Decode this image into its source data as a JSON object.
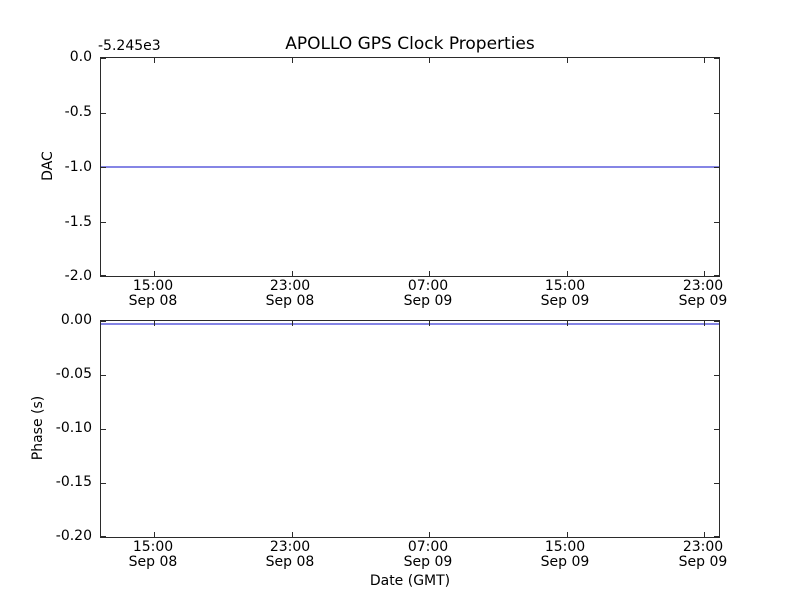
{
  "figure": {
    "title": "APOLLO GPS Clock Properties",
    "xlabel": "Date (GMT)"
  },
  "style": {
    "line_color": "#8585e5",
    "spine_color": "#2b2b2b",
    "text_color": "#000000",
    "background": "#ffffff"
  },
  "chart_data": [
    {
      "type": "line",
      "title": "APOLLO GPS Clock Properties",
      "ylabel": "DAC",
      "y_offset_text": "-5.245e3",
      "ylim": [
        -2.0,
        0.0
      ],
      "yticks": [
        "0.0",
        "-0.5",
        "-1.0",
        "-1.5",
        "-2.0"
      ],
      "x_tick_labels": [
        {
          "time": "15:00",
          "date": "Sep 08"
        },
        {
          "time": "23:00",
          "date": "Sep 08"
        },
        {
          "time": "07:00",
          "date": "Sep 09"
        },
        {
          "time": "15:00",
          "date": "Sep 09"
        },
        {
          "time": "23:00",
          "date": "Sep 09"
        }
      ],
      "grid": false,
      "legend": "none",
      "series": [
        {
          "name": "DAC",
          "shape": "constant-horizontal-line",
          "y_constant": -1.0
        }
      ]
    },
    {
      "type": "line",
      "ylabel": "Phase (s)",
      "xlabel": "Date (GMT)",
      "ylim": [
        -0.2,
        0.0
      ],
      "yticks": [
        "0.00",
        "-0.05",
        "-0.10",
        "-0.15",
        "-0.20"
      ],
      "x_tick_labels": [
        {
          "time": "15:00",
          "date": "Sep 08"
        },
        {
          "time": "23:00",
          "date": "Sep 08"
        },
        {
          "time": "07:00",
          "date": "Sep 09"
        },
        {
          "time": "15:00",
          "date": "Sep 09"
        },
        {
          "time": "23:00",
          "date": "Sep 09"
        }
      ],
      "grid": false,
      "legend": "none",
      "series": [
        {
          "name": "Phase",
          "shape": "constant-horizontal-line",
          "y_constant": -0.003
        }
      ]
    }
  ]
}
